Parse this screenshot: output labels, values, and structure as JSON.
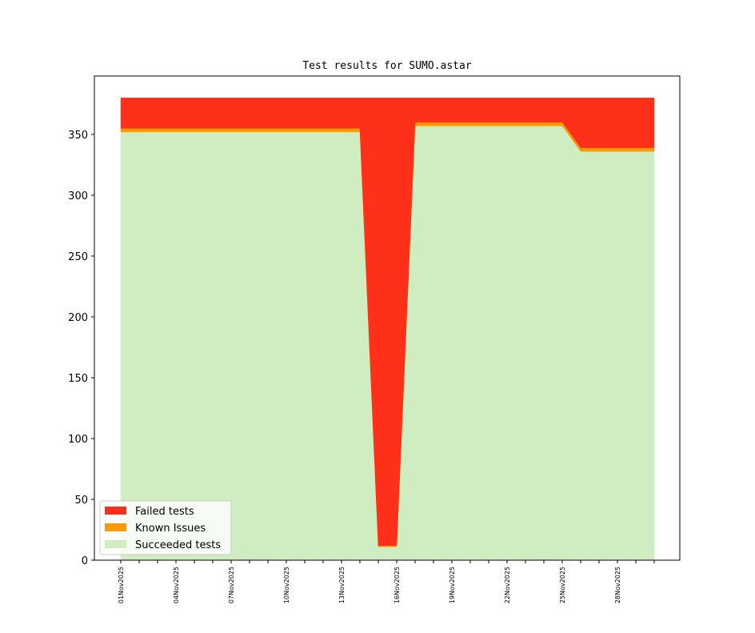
{
  "chart_data": {
    "type": "stacked-area",
    "title": "Test results for SUMO.astar",
    "categories": [
      "01Nov2025",
      null,
      null,
      "04Nov2025",
      null,
      null,
      "07Nov2025",
      null,
      null,
      "10Nov2025",
      null,
      null,
      "13Nov2025",
      null,
      null,
      "16Nov2025",
      null,
      null,
      "19Nov2025",
      null,
      null,
      "22Nov2025",
      null,
      null,
      "25Nov2025",
      null,
      null,
      "28Nov2025",
      null,
      null
    ],
    "series": [
      {
        "name": "Succeeded tests",
        "color": "#cfedc0",
        "values": [
          352,
          352,
          352,
          352,
          352,
          352,
          352,
          352,
          352,
          352,
          352,
          352,
          352,
          352,
          11,
          11,
          357,
          357,
          357,
          357,
          357,
          357,
          357,
          357,
          357,
          336,
          336,
          336,
          336,
          336
        ]
      },
      {
        "name": "Known Issues",
        "color": "#ff9900",
        "values": [
          3,
          3,
          3,
          3,
          3,
          3,
          3,
          3,
          3,
          3,
          3,
          3,
          3,
          3,
          1,
          1,
          3,
          3,
          3,
          3,
          3,
          3,
          3,
          3,
          3,
          3,
          3,
          3,
          3,
          3
        ]
      },
      {
        "name": "Failed tests",
        "color": "#ff3019",
        "values": [
          25,
          25,
          25,
          25,
          25,
          25,
          25,
          25,
          25,
          25,
          25,
          25,
          25,
          25,
          368,
          368,
          20,
          20,
          20,
          20,
          20,
          20,
          20,
          20,
          20,
          41,
          41,
          41,
          41,
          41
        ]
      }
    ],
    "ylim": [
      0,
      398
    ],
    "yticks": [
      0,
      50,
      100,
      150,
      200,
      250,
      300,
      350
    ],
    "legend": "lower left"
  }
}
